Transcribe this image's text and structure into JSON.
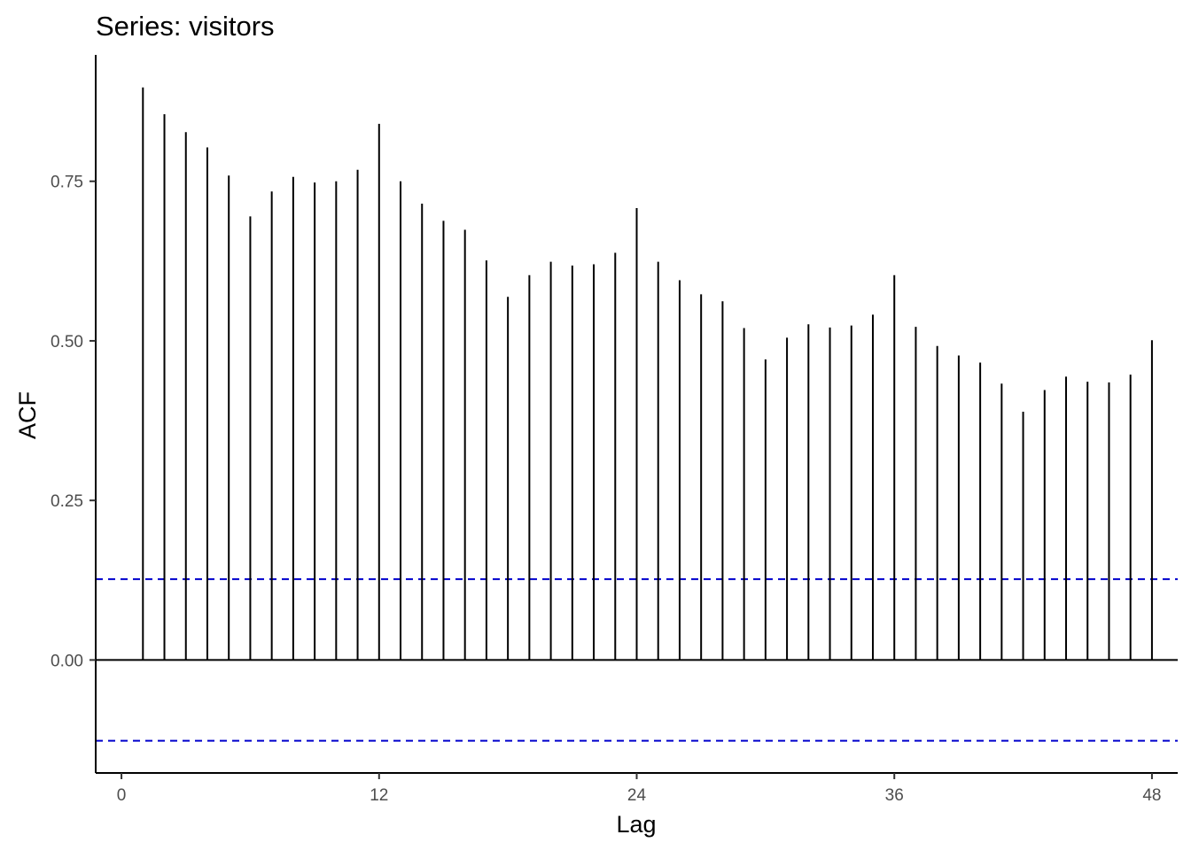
{
  "chart_data": {
    "type": "bar",
    "title": "Series: visitors",
    "xlabel": "Lag",
    "ylabel": "ACF",
    "x_ticks": [
      0,
      12,
      24,
      36,
      48
    ],
    "x_tick_labels": [
      "0",
      "12",
      "24",
      "36",
      "48"
    ],
    "y_ticks": [
      0,
      0.25,
      0.5,
      0.75
    ],
    "y_tick_labels": [
      "0.00",
      "0.25",
      "0.50",
      "0.75"
    ],
    "xlim": [
      -1.2,
      49.2
    ],
    "ylim": [
      -0.177,
      0.948
    ],
    "grid": false,
    "x": [
      1,
      2,
      3,
      4,
      5,
      6,
      7,
      8,
      9,
      10,
      11,
      12,
      13,
      14,
      15,
      16,
      17,
      18,
      19,
      20,
      21,
      22,
      23,
      24,
      25,
      26,
      27,
      28,
      29,
      30,
      31,
      32,
      33,
      34,
      35,
      36,
      37,
      38,
      39,
      40,
      41,
      42,
      43,
      44,
      45,
      46,
      47,
      48
    ],
    "values": [
      0.897,
      0.855,
      0.827,
      0.803,
      0.759,
      0.695,
      0.734,
      0.757,
      0.748,
      0.75,
      0.768,
      0.84,
      0.75,
      0.715,
      0.688,
      0.674,
      0.626,
      0.569,
      0.603,
      0.624,
      0.618,
      0.62,
      0.638,
      0.708,
      0.624,
      0.595,
      0.573,
      0.562,
      0.52,
      0.471,
      0.505,
      0.526,
      0.521,
      0.524,
      0.541,
      0.603,
      0.522,
      0.492,
      0.477,
      0.466,
      0.433,
      0.389,
      0.423,
      0.444,
      0.436,
      0.435,
      0.447,
      0.501
    ],
    "confidence_bound": 0.1266,
    "colors": {
      "spike": "#000000",
      "confidence_line": "#0000cc",
      "axis": "#000000",
      "tick_label": "#4d4d4d"
    }
  }
}
